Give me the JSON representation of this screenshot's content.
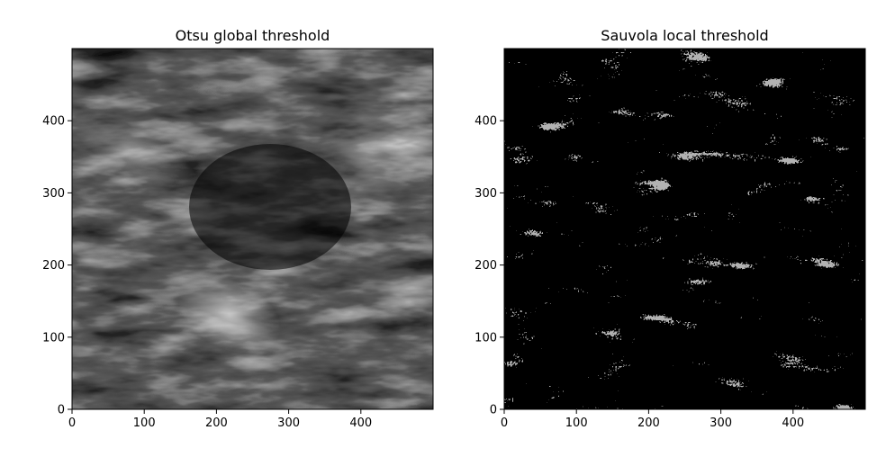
{
  "chart_data": [
    {
      "type": "heatmap",
      "title": "Otsu global threshold",
      "xlabel": "",
      "ylabel": "",
      "xlim": [
        0,
        500
      ],
      "ylim": [
        0,
        500
      ],
      "xticks": [
        0,
        100,
        200,
        300,
        400
      ],
      "yticks": [
        0,
        100,
        200,
        300,
        400
      ],
      "grid": false,
      "colormap": "gray",
      "image": "grayscale filament texture, bright fibrous streaks on dark background"
    },
    {
      "type": "heatmap",
      "title": "Sauvola local threshold",
      "xlabel": "",
      "ylabel": "",
      "xlim": [
        0,
        500
      ],
      "ylim": [
        0,
        500
      ],
      "xticks": [
        0,
        100,
        200,
        300,
        400
      ],
      "yticks": [
        0,
        100,
        200,
        300,
        400
      ],
      "grid": false,
      "colormap": "gray",
      "image": "speckled black and gray binarized texture with diagonal streak bands"
    }
  ],
  "colors": {
    "axis": "#000000",
    "background": "#ffffff"
  }
}
